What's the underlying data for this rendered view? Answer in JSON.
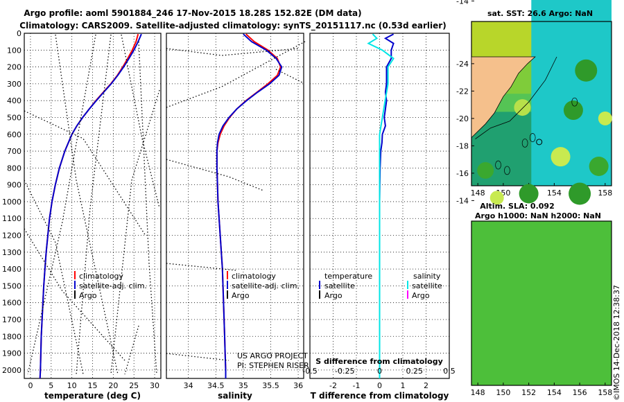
{
  "header": {
    "line1": "Argo profile: aoml 5901884_246 17-Nov-2015 18.28S 152.82E (DM data)",
    "line2": "Climatology: CARS2009. Satellite-adjusted climatology: synTS_20151117.nc (0.53d earlier)"
  },
  "footer": {
    "project": "US ARGO PROJECT",
    "pi": "PI: STEPHEN RISER",
    "timestamp": "©IMOS 14-Dec-2018 12:38:37"
  },
  "colors": {
    "climatology": "#ff0000",
    "satellite": "#0000cc",
    "argo": "#000000",
    "satellite_s": "#00e5e5",
    "argo_s": "#ff00ff"
  },
  "maps": {
    "sst": {
      "title": "sat. SST: 26.6 Argo: NaN"
    },
    "sla": {
      "title1": "Altim. SLA: 0.092",
      "title2": "Argo h1000: NaN h2000: NaN"
    },
    "x_ticks": [
      "148",
      "150",
      "152",
      "154",
      "156",
      "158"
    ],
    "y_ticks": [
      "-14",
      "-16",
      "-18",
      "-20",
      "-22",
      "-24"
    ],
    "float_lon": 152.82,
    "float_lat": -18.28
  },
  "chart_data": [
    {
      "type": "line",
      "id": "temperature",
      "xlabel": "temperature (deg C)",
      "ylabel": "depth",
      "xlim": [
        -1.5,
        31.5
      ],
      "ylim": [
        0,
        2050
      ],
      "x_ticks": [
        0,
        5,
        10,
        15,
        20,
        25,
        30
      ],
      "y_ticks": [
        0,
        100,
        200,
        300,
        400,
        500,
        600,
        700,
        800,
        900,
        1000,
        1100,
        1200,
        1300,
        1400,
        1500,
        1600,
        1700,
        1800,
        1900,
        2000
      ],
      "legend": [
        "climatology",
        "satellite-adj. clim.",
        "Argo"
      ],
      "series": [
        {
          "name": "climatology",
          "depth": [
            5,
            50,
            100,
            150,
            200,
            250,
            300,
            350,
            400,
            450,
            500,
            550,
            600,
            700,
            800,
            900,
            1000,
            1100,
            1200,
            1300,
            1400,
            1500,
            1600,
            1700,
            1800,
            1900,
            2000,
            2050
          ],
          "values": [
            26.0,
            25.5,
            24.6,
            23.5,
            22.3,
            21.0,
            19.4,
            17.6,
            15.8,
            14.2,
            12.6,
            11.2,
            10.0,
            8.3,
            7.0,
            6.0,
            5.2,
            4.6,
            4.2,
            3.8,
            3.5,
            3.2,
            3.0,
            2.8,
            2.6,
            2.5,
            2.4,
            2.3
          ]
        },
        {
          "name": "satellite-adj. clim.",
          "depth": [
            5,
            50,
            100,
            150,
            200,
            250,
            300,
            350,
            400,
            450,
            500,
            550,
            600,
            700,
            800,
            900,
            1000,
            1100,
            1200,
            1300,
            1400,
            1500,
            1600,
            1700,
            1800,
            1900,
            2000,
            2050
          ],
          "values": [
            26.8,
            26.0,
            25.0,
            23.8,
            22.5,
            21.1,
            19.5,
            17.7,
            15.9,
            14.2,
            12.6,
            11.2,
            10.0,
            8.3,
            7.0,
            6.0,
            5.2,
            4.6,
            4.2,
            3.8,
            3.5,
            3.2,
            3.0,
            2.8,
            2.6,
            2.5,
            2.4,
            2.3
          ]
        }
      ]
    },
    {
      "type": "line",
      "id": "salinity",
      "xlabel": "salinity",
      "ylabel": "depth",
      "xlim": [
        33.6,
        36.1
      ],
      "ylim": [
        0,
        2050
      ],
      "x_ticks": [
        34,
        34.5,
        35,
        35.5,
        36
      ],
      "legend": [
        "climatology",
        "satellite-adj. clim.",
        "Argo"
      ],
      "series": [
        {
          "name": "climatology",
          "depth": [
            5,
            50,
            100,
            150,
            200,
            250,
            300,
            350,
            400,
            450,
            500,
            550,
            600,
            650,
            700,
            800,
            900,
            1000,
            1100,
            1200,
            1300,
            1400,
            1500,
            1600,
            1700,
            1800,
            1900,
            2000,
            2050
          ],
          "values": [
            35.05,
            35.2,
            35.45,
            35.62,
            35.68,
            35.62,
            35.45,
            35.25,
            35.05,
            34.88,
            34.75,
            34.65,
            34.58,
            34.54,
            34.52,
            34.52,
            34.53,
            34.54,
            34.56,
            34.58,
            34.6,
            34.62,
            34.63,
            34.64,
            34.65,
            34.66,
            34.67,
            34.68,
            34.68
          ]
        },
        {
          "name": "satellite-adj. clim.",
          "depth": [
            5,
            50,
            100,
            150,
            200,
            250,
            300,
            350,
            400,
            450,
            500,
            550,
            600,
            650,
            700,
            800,
            900,
            1000,
            1100,
            1200,
            1300,
            1400,
            1500,
            1600,
            1700,
            1800,
            1900,
            2000,
            2050
          ],
          "values": [
            35.0,
            35.15,
            35.42,
            35.6,
            35.7,
            35.65,
            35.48,
            35.26,
            35.06,
            34.88,
            34.74,
            34.63,
            34.56,
            34.53,
            34.52,
            34.52,
            34.53,
            34.54,
            34.56,
            34.58,
            34.6,
            34.62,
            34.63,
            34.64,
            34.65,
            34.66,
            34.67,
            34.68,
            34.68
          ]
        }
      ]
    },
    {
      "type": "line",
      "id": "difference",
      "xlabel": "T difference from climatology",
      "xlabel_top": "S difference from climatology",
      "xlim": [
        -3.0,
        3.0
      ],
      "ylim": [
        0,
        2050
      ],
      "x_ticks": [
        -2,
        -1,
        0,
        1,
        2
      ],
      "x_ticks_s": [
        "-0.5",
        "-0.25",
        "0",
        "0.25",
        "0.5"
      ],
      "legend": {
        "left_header": "temperature",
        "right_header": "salinity",
        "left": [
          "satellite",
          "Argo"
        ],
        "right": [
          "satellite",
          "Argo"
        ]
      },
      "series": [
        {
          "name": "temperature satellite",
          "depth": [
            5,
            30,
            60,
            100,
            150,
            200,
            250,
            300,
            350,
            400,
            450,
            500,
            550,
            600,
            650,
            700,
            800,
            900,
            1000,
            1100,
            1200,
            1300,
            1400,
            1500,
            1600,
            1700,
            1800,
            1900,
            2000,
            2050
          ],
          "values": [
            0.6,
            0.25,
            0.6,
            0.5,
            0.5,
            0.3,
            0.3,
            0.3,
            0.25,
            0.3,
            0.25,
            0.2,
            0.25,
            0.12,
            0.1,
            0.05,
            0.02,
            0.01,
            0.0,
            0.0,
            0.0,
            0.0,
            0.0,
            0.0,
            0.0,
            0.0,
            0.0,
            0.0,
            0.0,
            0.0
          ]
        },
        {
          "name": "salinity satellite",
          "depth": [
            5,
            30,
            60,
            100,
            150,
            200,
            300,
            400,
            500,
            600,
            700,
            800,
            900,
            1000,
            1200,
            1400,
            1600,
            1800,
            2000,
            2050
          ],
          "values": [
            -0.05,
            -0.02,
            -0.08,
            0.02,
            0.1,
            0.06,
            0.06,
            0.04,
            0.02,
            0.0,
            0.0,
            0.0,
            0.0,
            0.0,
            0.0,
            0.0,
            0.0,
            0.0,
            0.0,
            0.0
          ]
        }
      ]
    }
  ]
}
